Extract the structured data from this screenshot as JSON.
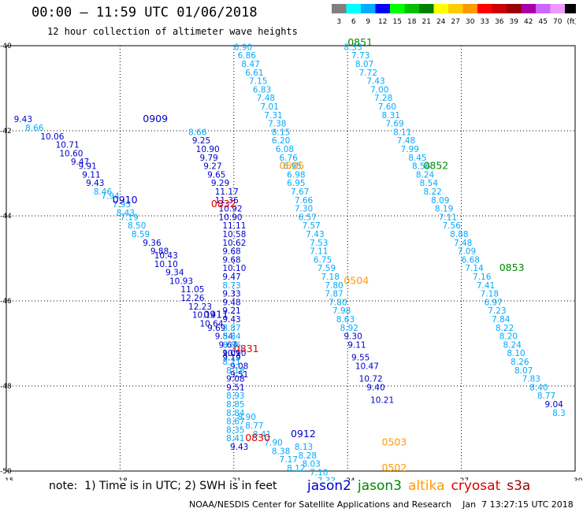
{
  "header": {
    "title": "00:00 – 11:59 UTC 01/06/2018",
    "subtitle": "12 hour collection of altimeter wave heights"
  },
  "colorbar": {
    "colors": [
      "#808080",
      "#00ffff",
      "#00aaff",
      "#0000ff",
      "#00ff00",
      "#00c000",
      "#008000",
      "#ffff00",
      "#ffcc00",
      "#ff9900",
      "#ff0000",
      "#cc0000",
      "#990000",
      "#aa00aa",
      "#cc66ff",
      "#ee99ff",
      "#000000"
    ],
    "labels": [
      "3",
      "6",
      "9",
      "12",
      "15",
      "18",
      "21",
      "24",
      "27",
      "30",
      "33",
      "36",
      "39",
      "42",
      "45",
      "70",
      "(ft)"
    ]
  },
  "footer": {
    "note": "note:  1) Time is in UTC; 2) SWH is in feet",
    "credit": "NOAA/NESDIS Center for Satellite Applications and Research    Jan  7 13:27:15 UTC 2018",
    "satellites": [
      {
        "name": "jason2",
        "color": "#0000cc"
      },
      {
        "name": "jason3",
        "color": "#008800"
      },
      {
        "name": "altika",
        "color": "#ff9900"
      },
      {
        "name": "cryosat",
        "color": "#dd0000"
      },
      {
        "name": "s3a",
        "color": "#990000"
      }
    ]
  },
  "chart_data": {
    "type": "scatter",
    "title": "00:00 – 11:59 UTC 01/06/2018",
    "subtitle": "12 hour collection of altimeter wave heights",
    "x_ticks": [
      "15",
      "18",
      "21",
      "24",
      "27",
      "30"
    ],
    "y_ticks": [
      "-40",
      "-42",
      "-44",
      "-46",
      "-48",
      "-50"
    ],
    "xlim": [
      15,
      30
    ],
    "ylim": [
      -50,
      -40
    ],
    "grid": true,
    "tracks": [
      {
        "satellite": "jason2",
        "time_label": "0909",
        "label_pos": [
          18.6,
          -41.8
        ],
        "label_color": "#0000cc",
        "points": [
          [
            15.2,
            -41.8,
            "9.43"
          ],
          [
            15.5,
            -42.0,
            "8.66"
          ],
          [
            15.9,
            -42.2,
            "10.06"
          ],
          [
            16.3,
            -42.4,
            "10.71"
          ],
          [
            16.4,
            -42.6,
            "10.60"
          ],
          [
            16.7,
            -42.8,
            "9.47"
          ],
          [
            16.9,
            -42.9,
            "9.91"
          ],
          [
            17.0,
            -43.1,
            "9.11"
          ],
          [
            17.1,
            -43.3,
            "9.43"
          ],
          [
            17.3,
            -43.5,
            "8.46"
          ],
          [
            17.5,
            -43.6,
            "7.94"
          ],
          [
            17.8,
            -43.8,
            "7.93"
          ],
          [
            17.9,
            -44.0,
            "8.43"
          ],
          [
            18.0,
            -44.1,
            "7.19"
          ],
          [
            18.2,
            -44.3,
            "8.50"
          ],
          [
            18.3,
            -44.5,
            "8.59"
          ],
          [
            18.6,
            -44.7,
            "9.36"
          ],
          [
            18.8,
            -44.9,
            "9.88"
          ],
          [
            18.9,
            -45.0,
            "10.43"
          ],
          [
            18.9,
            -45.2,
            "10.10"
          ],
          [
            19.2,
            -45.4,
            "9.34"
          ],
          [
            19.3,
            -45.6,
            "10.93"
          ],
          [
            19.6,
            -45.8,
            "11.05"
          ]
        ]
      },
      {
        "satellite": "jason2",
        "time_label": "0910",
        "label_pos": [
          17.8,
          -43.7
        ],
        "label_color": "#0000cc",
        "points": [
          [
            19.6,
            -46.0,
            "12.26"
          ],
          [
            19.8,
            -46.2,
            "12.23"
          ],
          [
            19.9,
            -46.4,
            "10.14"
          ],
          [
            20.1,
            -46.6,
            "10.64"
          ],
          [
            20.3,
            -46.7,
            "9.69"
          ],
          [
            20.5,
            -46.9,
            "9.54"
          ],
          [
            20.6,
            -47.1,
            "9.67"
          ],
          [
            20.7,
            -47.3,
            "10.10"
          ],
          [
            20.7,
            -47.4,
            "9.19"
          ],
          [
            20.9,
            -47.6,
            "9.08"
          ],
          [
            20.9,
            -47.8,
            "9.51"
          ]
        ]
      },
      {
        "satellite": "jason2",
        "time_label": "0911",
        "label_pos": [
          20.2,
          -46.4
        ],
        "label_color": "#0000cc",
        "points": [
          [
            19.8,
            -42.1,
            "8.66"
          ],
          [
            19.9,
            -42.3,
            "9.25"
          ],
          [
            20.0,
            -42.5,
            "10.90"
          ],
          [
            20.1,
            -42.7,
            "9.79"
          ],
          [
            20.2,
            -42.9,
            "9.27"
          ],
          [
            20.3,
            -43.1,
            "9.65"
          ],
          [
            20.4,
            -43.3,
            "9.29"
          ],
          [
            20.5,
            -43.5,
            "11.17"
          ],
          [
            20.5,
            -43.7,
            "11.36"
          ],
          [
            20.6,
            -43.9,
            "10.92"
          ],
          [
            20.6,
            -44.1,
            "10.90"
          ],
          [
            20.7,
            -44.3,
            "11.11"
          ],
          [
            20.7,
            -44.5,
            "10.58"
          ],
          [
            20.7,
            -44.7,
            "10.62"
          ],
          [
            20.7,
            -44.9,
            "9.68"
          ],
          [
            20.7,
            -45.1,
            "9.68"
          ],
          [
            20.7,
            -45.3,
            "10.10"
          ],
          [
            20.7,
            -45.5,
            "9.47"
          ],
          [
            20.7,
            -45.7,
            "8.73"
          ],
          [
            20.7,
            -45.9,
            "9.33"
          ],
          [
            20.7,
            -46.1,
            "9.48"
          ],
          [
            20.7,
            -46.3,
            "9.21"
          ],
          [
            20.7,
            -46.5,
            "9.43"
          ],
          [
            20.7,
            -46.7,
            "8.87"
          ],
          [
            20.7,
            -46.9,
            "8.84"
          ],
          [
            20.7,
            -47.1,
            "8.86"
          ],
          [
            20.7,
            -47.3,
            "9.09"
          ],
          [
            20.7,
            -47.5,
            "8.21"
          ],
          [
            20.8,
            -47.7,
            "8.18"
          ],
          [
            20.8,
            -47.9,
            "9.08"
          ],
          [
            20.8,
            -48.1,
            "9.51"
          ],
          [
            20.8,
            -48.3,
            "8.93"
          ],
          [
            20.8,
            -48.5,
            "8.85"
          ],
          [
            20.8,
            -48.7,
            "8.84"
          ],
          [
            20.8,
            -48.9,
            "8.67"
          ],
          [
            20.8,
            -49.1,
            "8.35"
          ],
          [
            20.8,
            -49.3,
            "8.41"
          ],
          [
            20.9,
            -49.5,
            "9.43"
          ]
        ]
      },
      {
        "satellite": "jason2",
        "time_label": "0912",
        "label_pos": [
          22.5,
          -49.2
        ],
        "label_color": "#0000cc",
        "points": [
          [
            21.1,
            -48.8,
            "8.90"
          ],
          [
            21.3,
            -49.0,
            "8.77"
          ],
          [
            21.5,
            -49.2,
            "8.41"
          ],
          [
            21.8,
            -49.4,
            "7.90"
          ],
          [
            22.0,
            -49.6,
            "8.38"
          ],
          [
            22.2,
            -49.8,
            "7.17"
          ],
          [
            22.4,
            -50.0,
            "8.12"
          ],
          [
            22.6,
            -49.5,
            "8.13"
          ],
          [
            22.7,
            -49.7,
            "8.28"
          ],
          [
            22.8,
            -49.9,
            "8.03"
          ],
          [
            23.0,
            -50.1,
            "7.10"
          ],
          [
            23.2,
            -50.3,
            "7.33"
          ]
        ]
      },
      {
        "satellite": "jason3",
        "time_label": "0851",
        "label_pos": [
          24.0,
          -40.0
        ],
        "label_color": "#008800",
        "points": [
          [
            23.9,
            -40.1,
            "8.33"
          ],
          [
            24.1,
            -40.3,
            "7.73"
          ],
          [
            24.2,
            -40.5,
            "8.07"
          ],
          [
            24.3,
            -40.7,
            "7.72"
          ],
          [
            24.5,
            -40.9,
            "7.43"
          ],
          [
            24.6,
            -41.1,
            "7.00"
          ],
          [
            24.7,
            -41.3,
            "7.28"
          ],
          [
            24.8,
            -41.5,
            "7.60"
          ],
          [
            24.9,
            -41.7,
            "8.31"
          ],
          [
            25.0,
            -41.9,
            "7.69"
          ],
          [
            25.2,
            -42.1,
            "8.11"
          ],
          [
            25.3,
            -42.3,
            "7.48"
          ],
          [
            25.4,
            -42.5,
            "7.99"
          ],
          [
            25.6,
            -42.7,
            "8.45"
          ],
          [
            25.7,
            -42.9,
            "8.56"
          ],
          [
            25.8,
            -43.1,
            "8.24"
          ],
          [
            25.9,
            -43.3,
            "8.54"
          ],
          [
            26.0,
            -43.5,
            "8.22"
          ],
          [
            26.2,
            -43.7,
            "8.09"
          ],
          [
            26.3,
            -43.9,
            "8.19"
          ],
          [
            26.4,
            -44.1,
            "7.11"
          ],
          [
            26.5,
            -44.3,
            "7.56"
          ],
          [
            26.7,
            -44.5,
            "8.88"
          ],
          [
            26.8,
            -44.7,
            "7.48"
          ],
          [
            26.9,
            -44.9,
            "7.09"
          ],
          [
            27.0,
            -45.1,
            "6.68"
          ]
        ]
      },
      {
        "satellite": "jason3",
        "time_label": "0852",
        "label_pos": [
          26.0,
          -42.9
        ],
        "label_color": "#008800",
        "points": [
          [
            27.1,
            -45.3,
            "7.14"
          ],
          [
            27.3,
            -45.5,
            "7.16"
          ],
          [
            27.4,
            -45.7,
            "7.41"
          ],
          [
            27.5,
            -45.9,
            "7.18"
          ],
          [
            27.6,
            -46.1,
            "6.97"
          ],
          [
            27.7,
            -46.3,
            "7.23"
          ],
          [
            27.8,
            -46.5,
            "7.84"
          ],
          [
            27.9,
            -46.7,
            "8.22"
          ],
          [
            28.0,
            -46.9,
            "8.20"
          ],
          [
            28.1,
            -47.1,
            "8.24"
          ],
          [
            28.2,
            -47.3,
            "8.10"
          ],
          [
            28.3,
            -47.5,
            "8.26"
          ],
          [
            28.4,
            -47.7,
            "8.07"
          ],
          [
            28.6,
            -47.9,
            "7.83"
          ],
          [
            28.8,
            -48.1,
            "8.40"
          ],
          [
            29.0,
            -48.3,
            "8.77"
          ],
          [
            29.2,
            -48.5,
            "9.04"
          ],
          [
            29.4,
            -48.7,
            "8.3"
          ]
        ]
      },
      {
        "satellite": "jason3",
        "time_label": "0853",
        "label_pos": [
          28.0,
          -45.3
        ],
        "label_color": "#008800",
        "points": []
      },
      {
        "satellite": "altika",
        "time_label": "0505",
        "label_pos": [
          22.2,
          -42.9
        ],
        "label_color": "#ff9900",
        "points": [
          [
            21.0,
            -40.1,
            "6.90"
          ],
          [
            21.1,
            -40.3,
            "6.86"
          ],
          [
            21.2,
            -40.5,
            "8.47"
          ],
          [
            21.3,
            -40.7,
            "6.61"
          ],
          [
            21.4,
            -40.9,
            "7.15"
          ],
          [
            21.5,
            -41.1,
            "6.83"
          ],
          [
            21.6,
            -41.3,
            "7.48"
          ],
          [
            21.7,
            -41.5,
            "7.01"
          ],
          [
            21.8,
            -41.7,
            "7.31"
          ],
          [
            21.9,
            -41.9,
            "7.38"
          ],
          [
            22.0,
            -42.1,
            "8.15"
          ],
          [
            22.0,
            -42.3,
            "6.20"
          ],
          [
            22.1,
            -42.5,
            "6.08"
          ],
          [
            22.2,
            -42.7,
            "6.76"
          ],
          [
            22.3,
            -42.9,
            "6.95"
          ],
          [
            22.4,
            -43.1,
            "6.98"
          ],
          [
            22.4,
            -43.3,
            "6.95"
          ],
          [
            22.5,
            -43.5,
            "7.67"
          ],
          [
            22.6,
            -43.7,
            "7.66"
          ],
          [
            22.6,
            -43.9,
            "7.30"
          ],
          [
            22.7,
            -44.1,
            "6.57"
          ],
          [
            22.8,
            -44.3,
            "7.57"
          ],
          [
            22.9,
            -44.5,
            "7.43"
          ],
          [
            23.0,
            -44.7,
            "7.53"
          ],
          [
            23.0,
            -44.9,
            "7.11"
          ],
          [
            23.1,
            -45.1,
            "6.75"
          ],
          [
            23.2,
            -45.3,
            "7.59"
          ],
          [
            23.3,
            -45.5,
            "7.18"
          ],
          [
            23.4,
            -45.7,
            "7.80"
          ],
          [
            23.4,
            -45.9,
            "7.87"
          ],
          [
            23.5,
            -46.1,
            "7.80"
          ],
          [
            23.6,
            -46.3,
            "7.98"
          ],
          [
            23.7,
            -46.5,
            "8.63"
          ],
          [
            23.8,
            -46.7,
            "8.92"
          ]
        ]
      },
      {
        "satellite": "altika",
        "time_label": "0504",
        "label_pos": [
          23.9,
          -45.6
        ],
        "label_color": "#ff9900",
        "points": []
      },
      {
        "satellite": "altika",
        "time_label": "0503",
        "label_pos": [
          24.9,
          -49.4
        ],
        "label_color": "#ff9900",
        "points": []
      },
      {
        "satellite": "altika",
        "time_label": "0502",
        "label_pos": [
          24.9,
          -50.0
        ],
        "label_color": "#ff9900",
        "points": []
      },
      {
        "satellite": "jason2",
        "time_label": "",
        "label_pos": null,
        "label_color": "#0000cc",
        "points": [
          [
            23.9,
            -46.9,
            "9.30"
          ],
          [
            24.0,
            -47.1,
            "9.11"
          ],
          [
            24.1,
            -47.4,
            "9.55"
          ],
          [
            24.2,
            -47.6,
            "10.47"
          ],
          [
            24.3,
            -47.9,
            "10.72"
          ],
          [
            24.5,
            -48.1,
            "9.40"
          ],
          [
            24.6,
            -48.4,
            "10.21"
          ]
        ]
      },
      {
        "satellite": "cryosat",
        "time_label": "0832",
        "label_pos": [
          20.4,
          -43.8
        ],
        "label_color": "#dd0000",
        "points": []
      },
      {
        "satellite": "cryosat",
        "time_label": "0831",
        "label_pos": [
          21.0,
          -47.2
        ],
        "label_color": "#dd0000",
        "points": []
      },
      {
        "satellite": "cryosat",
        "time_label": "0830",
        "label_pos": [
          21.3,
          -49.3
        ],
        "label_color": "#dd0000",
        "points": []
      }
    ]
  }
}
